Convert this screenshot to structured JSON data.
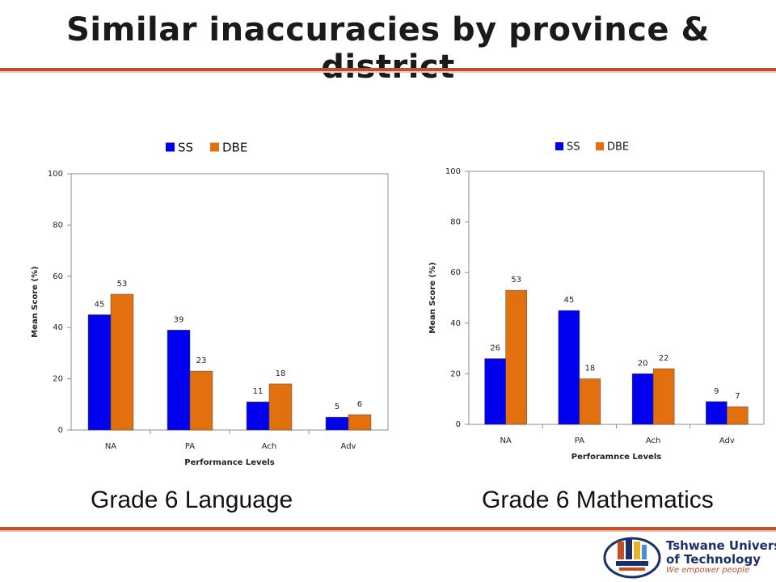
{
  "title": "Similar inaccuracies by province & district",
  "captions": [
    "Grade 6 Language",
    "Grade  6 Mathematics"
  ],
  "logo": {
    "line1": "Tshwane University",
    "line2": "of Technology",
    "tagline": "We empower people"
  },
  "colors": {
    "SS": "#0000ee",
    "DBE": "#e3700f",
    "rule": "#c0502b"
  },
  "chart_data": [
    {
      "type": "bar",
      "categories": [
        "NA",
        "PA",
        "Ach",
        "Adv"
      ],
      "series": [
        {
          "name": "SS",
          "values": [
            45,
            39,
            11,
            5
          ]
        },
        {
          "name": "DBE",
          "values": [
            53,
            23,
            18,
            6
          ]
        }
      ],
      "xlabel": "Performance Levels",
      "ylabel": "Mean Score (%)",
      "ylim": [
        0,
        100
      ],
      "yticks": [
        0,
        20,
        40,
        60,
        80,
        100
      ],
      "legend": "top-center",
      "grid": false
    },
    {
      "type": "bar",
      "categories": [
        "NA",
        "PA",
        "Ach",
        "Adv"
      ],
      "series": [
        {
          "name": "SS",
          "values": [
            26,
            45,
            20,
            9
          ]
        },
        {
          "name": "DBE",
          "values": [
            53,
            18,
            22,
            7
          ]
        }
      ],
      "xlabel": "Perforamnce Levels",
      "ylabel": "Mean Score (%)",
      "ylim": [
        0,
        100
      ],
      "yticks": [
        0,
        20,
        40,
        60,
        80,
        100
      ],
      "legend": "top-center",
      "grid": false
    }
  ]
}
